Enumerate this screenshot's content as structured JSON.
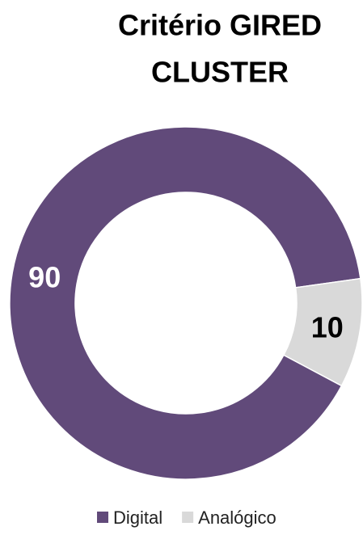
{
  "chart_data": {
    "type": "donut",
    "title": [
      "Critério GIRED",
      "CLUSTER"
    ],
    "categories": [
      "Digital",
      "Analógico"
    ],
    "values": [
      90,
      10
    ],
    "colors": [
      "#614a7a",
      "#d9d9d9"
    ],
    "label_colors": [
      "#ffffff",
      "#000000"
    ],
    "legend": "bottom"
  }
}
